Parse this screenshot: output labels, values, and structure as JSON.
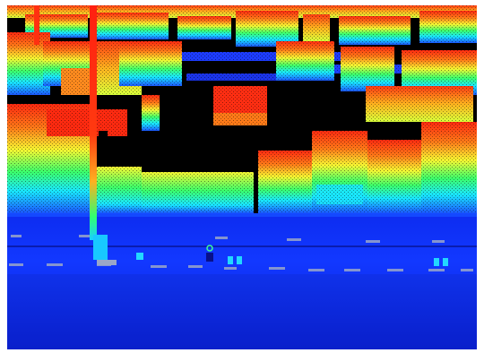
{
  "image": {
    "kind": "lidar-point-cloud",
    "subject": "shipping-container-yard",
    "colormap": "elevation-jet",
    "colors": {
      "ground_low": "#0a1fd0",
      "ground_far": "#1c3cff",
      "mid_cyan": "#19e6ff",
      "mid_green": "#3cff6a",
      "mid_yellow": "#f5f532",
      "high_orange": "#ff8a1e",
      "high_red": "#ff2a10",
      "background": "#000000",
      "frame": "#ffffff"
    }
  }
}
